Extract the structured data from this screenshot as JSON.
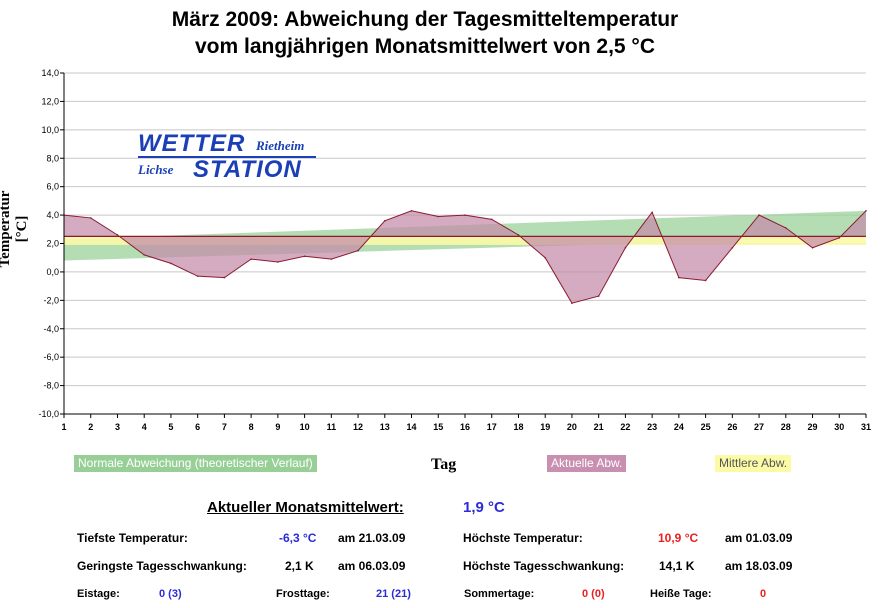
{
  "title_line1": "März 2009: Abweichung der Tagesmitteltemperatur",
  "title_line2": "vom langjährigen Monatsmittelwert von 2,5 °C",
  "logo": {
    "word1": "WETTER",
    "word2": "Rietheim",
    "word3": "Lichse",
    "word4": "STATION"
  },
  "legend": {
    "normal": "Normale Abweichung (theoretischer Verlauf)",
    "actual": "Aktuelle Abw.",
    "mean": "Mittlere Abw."
  },
  "colors": {
    "normal_fill": "#9bd29b",
    "actual_fill": "#c48aa8",
    "actual_line": "#8b1a2e",
    "mean_fill": "#fbfaa6",
    "grid": "#c8c8c8"
  },
  "chart_data": {
    "type": "area",
    "title": "März 2009: Abweichung der Tagesmitteltemperatur vom langjährigen Monatsmittelwert von 2,5 °C",
    "xlabel": "Tag",
    "ylabel": "Temperatur [°C]",
    "x": [
      1,
      2,
      3,
      4,
      5,
      6,
      7,
      8,
      9,
      10,
      11,
      12,
      13,
      14,
      15,
      16,
      17,
      18,
      19,
      20,
      21,
      22,
      23,
      24,
      25,
      26,
      27,
      28,
      29,
      30,
      31
    ],
    "xlim": [
      1,
      31
    ],
    "ylim": [
      -10,
      14
    ],
    "yticks": [
      "-10,0",
      "-8,0",
      "-6,0",
      "-4,0",
      "-2,0",
      "0,0",
      "2,0",
      "4,0",
      "6,0",
      "8,0",
      "10,0",
      "12,0",
      "14,0"
    ],
    "reference": 2.5,
    "series": [
      {
        "name": "Aktuelle Abw.",
        "values": [
          4.0,
          3.8,
          2.6,
          1.2,
          0.6,
          -0.3,
          -0.4,
          0.9,
          0.7,
          1.1,
          0.9,
          1.5,
          3.6,
          4.3,
          3.9,
          4.0,
          3.7,
          2.6,
          1.0,
          -2.2,
          -1.7,
          1.7,
          4.2,
          -0.4,
          -0.6,
          1.7,
          4.0,
          3.1,
          1.7,
          2.4,
          4.3
        ]
      },
      {
        "name": "Normale Abweichung (theoretischer Verlauf)",
        "lower_start": 0.8,
        "lower_end": 2.5,
        "upper_start": 2.3,
        "upper_end": 4.3
      },
      {
        "name": "Mittlere Abw.",
        "value": 1.9
      }
    ]
  },
  "stats": {
    "monthly_label": "Aktueller Monatsmittelwert:",
    "monthly_value": "1,9 °C",
    "tmin_label": "Tiefste Temperatur:",
    "tmin_value": "-6,3 °C",
    "tmin_date": "am 21.03.09",
    "tmax_label": "Höchste Temperatur:",
    "tmax_value": "10,9 °C",
    "tmax_date": "am 01.03.09",
    "minrange_label": "Geringste Tagesschwankung:",
    "minrange_value": "2,1 K",
    "minrange_date": "am 06.03.09",
    "maxrange_label": "Höchste Tagesschwankung:",
    "maxrange_value": "14,1 K",
    "maxrange_date": "am 18.03.09",
    "icedays_label": "Eistage:",
    "icedays_value": "0 (3)",
    "frostdays_label": "Frosttage:",
    "frostdays_value": "21 (21)",
    "summerdays_label": "Sommertage:",
    "summerdays_value": "0 (0)",
    "hotdays_label": "Heiße Tage:",
    "hotdays_value": "0"
  }
}
